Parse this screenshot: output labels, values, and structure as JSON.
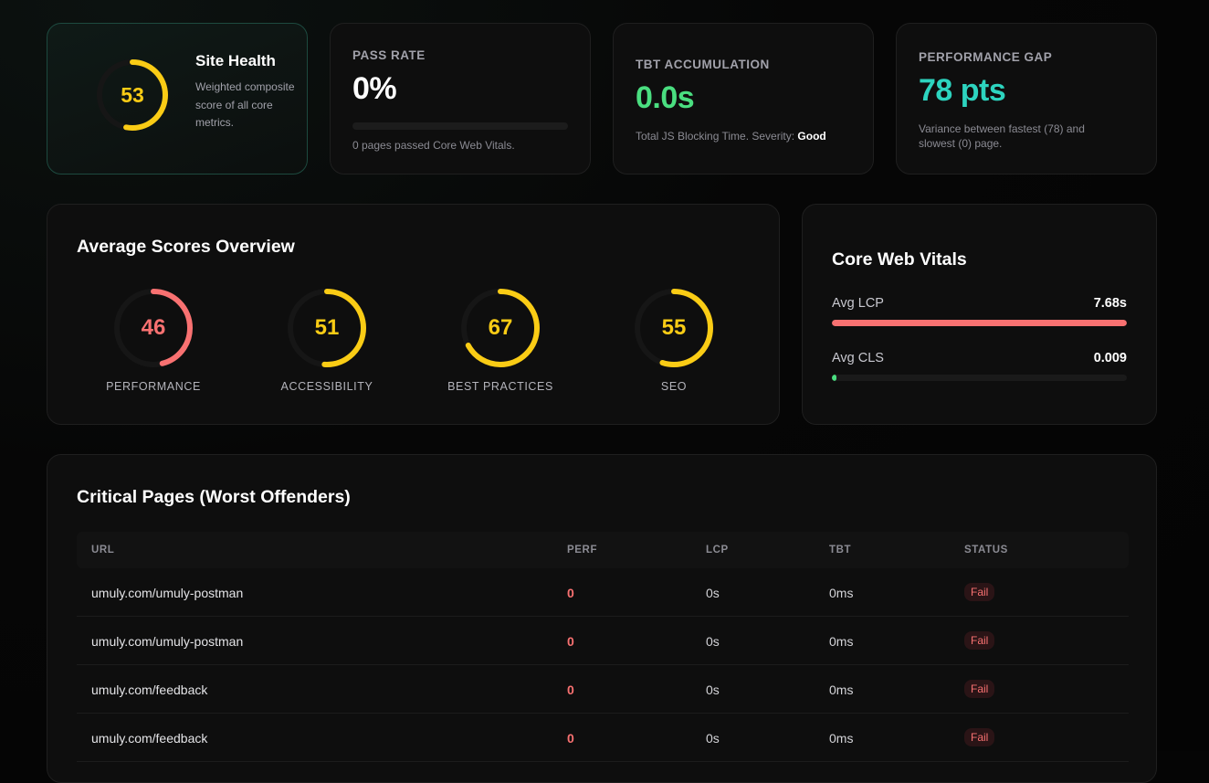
{
  "site_health": {
    "score": "53",
    "score_value": 53,
    "title": "Site Health",
    "description": "Weighted composite score of all core metrics.",
    "color": "#facc15"
  },
  "pass_rate": {
    "label": "PASS RATE",
    "value": "0%",
    "percent": 0,
    "description": "0 pages passed Core Web Vitals."
  },
  "tbt": {
    "label": "TBT ACCUMULATION",
    "value": "0.0s",
    "description": "Total JS Blocking Time. Severity: ",
    "severity": "Good",
    "color": "#4ade80"
  },
  "performance_gap": {
    "label": "PERFORMANCE GAP",
    "value": "78 pts",
    "description": "Variance between fastest (78) and slowest (0) page.",
    "color": "#2dd4bf"
  },
  "averages": {
    "title": "Average Scores Overview",
    "items": [
      {
        "label": "PERFORMANCE",
        "value": "46",
        "score": 46,
        "color": "#f87171"
      },
      {
        "label": "ACCESSIBILITY",
        "value": "51",
        "score": 51,
        "color": "#facc15"
      },
      {
        "label": "BEST PRACTICES",
        "value": "67",
        "score": 67,
        "color": "#facc15"
      },
      {
        "label": "SEO",
        "value": "55",
        "score": 55,
        "color": "#facc15"
      }
    ]
  },
  "core_web_vitals": {
    "title": "Core Web Vitals",
    "items": [
      {
        "label": "Avg LCP",
        "value": "7.68s",
        "fill": 1.0,
        "color": "#f87171"
      },
      {
        "label": "Avg CLS",
        "value": "0.009",
        "fill": 0.015,
        "color": "#4ade80"
      }
    ]
  },
  "critical_pages": {
    "title": "Critical Pages (Worst Offenders)",
    "columns": [
      "URL",
      "PERF",
      "LCP",
      "TBT",
      "STATUS"
    ],
    "rows": [
      {
        "url": "umuly.com/umuly-postman",
        "perf": "0",
        "lcp": "0s",
        "tbt": "0ms",
        "status": "Fail"
      },
      {
        "url": "umuly.com/umuly-postman",
        "perf": "0",
        "lcp": "0s",
        "tbt": "0ms",
        "status": "Fail"
      },
      {
        "url": "umuly.com/feedback",
        "perf": "0",
        "lcp": "0s",
        "tbt": "0ms",
        "status": "Fail"
      },
      {
        "url": "umuly.com/feedback",
        "perf": "0",
        "lcp": "0s",
        "tbt": "0ms",
        "status": "Fail"
      }
    ]
  }
}
